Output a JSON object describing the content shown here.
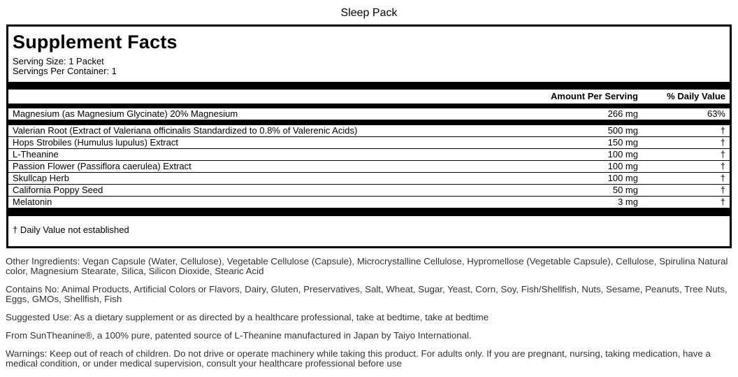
{
  "page_title": "Sleep Pack",
  "colors": {
    "bar": "#000000",
    "panel_border": "#000000",
    "panel_text": "#000000",
    "footer_text": "#333333",
    "background": "#ffffff"
  },
  "panel": {
    "title": "Supplement Facts",
    "serving_size": "Serving Size: 1 Packet",
    "servings_per_container": "Servings Per Container: 1",
    "columns": {
      "amount": "Amount Per Serving",
      "daily_value": "% Daily Value"
    },
    "rows": [
      {
        "name": "Magnesium (as Magnesium Glycinate) 20% Magnesium",
        "amount": "266 mg",
        "daily_value": "63%"
      },
      {
        "name": "Valerian Root (Extract of Valeriana officinalis Standardized to 0.8% of Valerenic Acids)",
        "amount": "500 mg",
        "daily_value": "†"
      },
      {
        "name": "Hops Strobiles (Humulus lupulus) Extract",
        "amount": "150 mg",
        "daily_value": "†"
      },
      {
        "name": "L-Theanine",
        "amount": "100 mg",
        "daily_value": "†"
      },
      {
        "name": "Passion Flower (Passiflora caerulea) Extract",
        "amount": "100 mg",
        "daily_value": "†"
      },
      {
        "name": "Skullcap Herb",
        "amount": "100 mg",
        "daily_value": "†"
      },
      {
        "name": "California Poppy Seed",
        "amount": "50 mg",
        "daily_value": "†"
      },
      {
        "name": "Melatonin",
        "amount": "3 mg",
        "daily_value": "†"
      }
    ],
    "footnote": "† Daily Value not established"
  },
  "footer": {
    "paragraphs": [
      "Other Ingredients: Vegan Capsule (Water, Cellulose), Vegetable Cellulose (Capsule), Microcrystalline Cellulose, Hypromellose (Vegetable Capsule), Cellulose, Spirulina Natural color, Magnesium Stearate, Silica, Silicon Dioxide, Stearic Acid",
      "Contains No: Animal Products, Artificial Colors or Flavors, Dairy, Gluten, Preservatives, Salt, Wheat, Sugar, Yeast, Corn, Soy, Fish/Shellfish, Nuts, Sesame, Peanuts, Tree Nuts, Eggs, GMOs, Shellfish, Fish",
      "Suggested Use: As a dietary supplement or as directed by a healthcare professional, take at bedtime, take at bedtime",
      "From SunTheanine®, a 100% pure, patented source of L-Theanine manufactured in Japan by Taiyo International.",
      "Warnings: Keep out of reach of children. Do not drive or operate machinery while taking this product. For adults only. If you are pregnant, nursing, taking medication, have a medical condition, or under medical supervision, consult your healthcare professional before use"
    ]
  }
}
